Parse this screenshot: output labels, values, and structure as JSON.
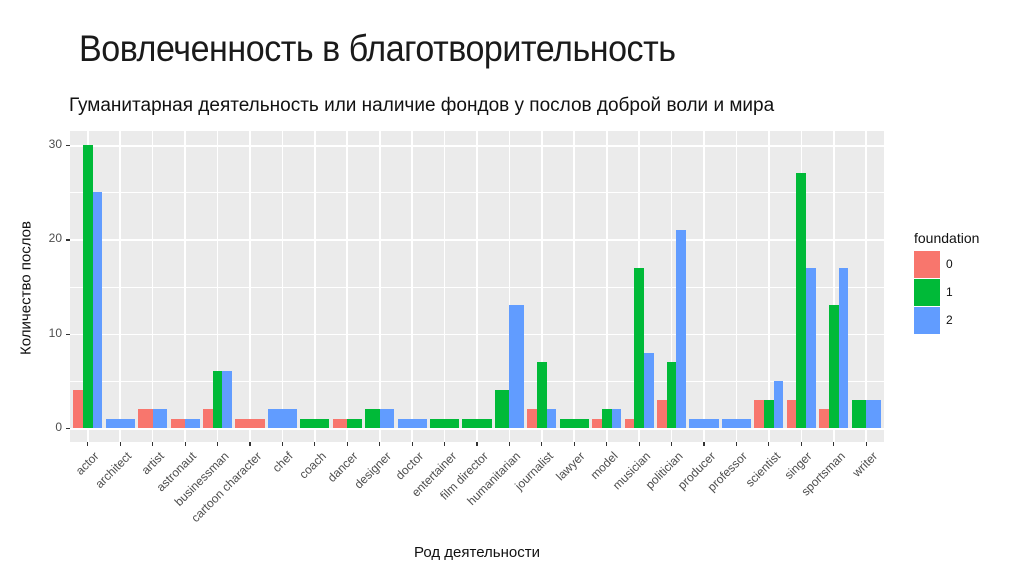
{
  "slide": {
    "title": "Вовлеченность в благотворительность"
  },
  "chart_data": {
    "type": "bar",
    "title": "Гуманитарная деятельность или наличие фондов у послов доброй воли и мира",
    "xlabel": "Род деятельности",
    "ylabel": "Количество послов",
    "ylim": [
      0,
      31
    ],
    "yticks": [
      0,
      10,
      20,
      30
    ],
    "grid": true,
    "legend_position": "right",
    "legend_title": "foundation",
    "categories": [
      "actor",
      "architect",
      "artist",
      "astronaut",
      "businessman",
      "cartoon character",
      "chef",
      "coach",
      "dancer",
      "designer",
      "doctor",
      "entertainer",
      "film director",
      "humanitarian",
      "journalist",
      "lawyer",
      "model",
      "musician",
      "politician",
      "producer",
      "professor",
      "scientist",
      "singer",
      "sportsman",
      "writer"
    ],
    "series": [
      {
        "name": "0",
        "color": "#F8766D",
        "values": [
          4,
          0,
          2,
          1,
          2,
          1,
          0,
          0,
          1,
          0,
          0,
          0,
          0,
          0,
          2,
          0,
          1,
          1,
          3,
          0,
          0,
          3,
          3,
          2,
          0
        ]
      },
      {
        "name": "1",
        "color": "#00BA38",
        "values": [
          30,
          0,
          0,
          0,
          6,
          0,
          0,
          1,
          1,
          2,
          0,
          1,
          1,
          4,
          7,
          1,
          2,
          17,
          7,
          0,
          0,
          3,
          27,
          13,
          3
        ]
      },
      {
        "name": "2",
        "color": "#619CFF",
        "values": [
          25,
          1,
          2,
          1,
          6,
          0,
          2,
          0,
          0,
          2,
          1,
          0,
          0,
          13,
          2,
          0,
          2,
          8,
          21,
          1,
          1,
          5,
          17,
          17,
          3
        ]
      }
    ]
  }
}
